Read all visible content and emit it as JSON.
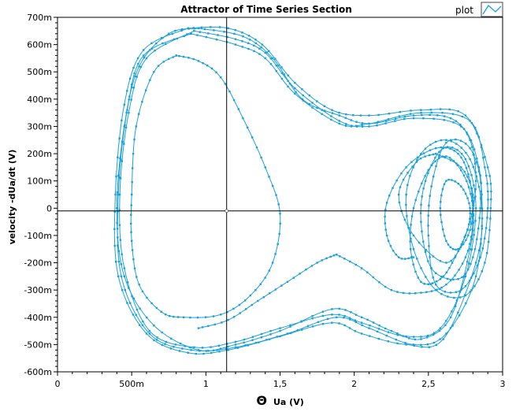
{
  "chart_data": {
    "type": "line",
    "title": "Attractor of Time Series Section",
    "xlabel_symbol": "Θ",
    "xlabel": "Ua (V)",
    "ylabel": "velocity -dUa/dt  (V)",
    "xlim": [
      0,
      3.0
    ],
    "ylim": [
      -0.6,
      0.7
    ],
    "x_ticks": [
      0,
      0.5,
      1,
      1.5,
      2,
      2.5,
      3
    ],
    "x_tick_labels": [
      "0",
      "500m",
      "1",
      "1,5",
      "2",
      "2,5",
      "3"
    ],
    "y_ticks": [
      0.7,
      0.6,
      0.5,
      0.4,
      0.3,
      0.2,
      0.1,
      0,
      -0.1,
      -0.2,
      -0.3,
      -0.4,
      -0.5,
      -0.6
    ],
    "y_tick_labels": [
      "700m",
      "600m",
      "500m",
      "400m",
      "300m",
      "200m",
      "100m",
      "0",
      "-100m",
      "-200m",
      "-300m",
      "-400m",
      "-500m",
      "-600m"
    ],
    "cursor": {
      "x": 1.14,
      "y": -0.01
    },
    "legend": {
      "position": "top-right",
      "entries": [
        "plot"
      ]
    },
    "series_color": "#1aa0d8",
    "series": [
      {
        "name": "plot",
        "loop_keypoints": [
          [
            [
              0.95,
              0.66
            ],
            [
              1.25,
              0.63
            ],
            [
              1.45,
              0.55
            ],
            [
              1.65,
              0.4
            ],
            [
              1.9,
              0.34
            ],
            [
              2.1,
              0.31
            ],
            [
              2.4,
              0.34
            ],
            [
              2.65,
              0.33
            ],
            [
              2.78,
              0.25
            ],
            [
              2.82,
              0.1
            ],
            [
              2.78,
              -0.05
            ],
            [
              2.68,
              -0.18
            ],
            [
              2.58,
              -0.26
            ],
            [
              2.45,
              -0.27
            ],
            [
              2.38,
              -0.15
            ],
            [
              2.4,
              0.0
            ],
            [
              2.5,
              0.14
            ],
            [
              2.62,
              0.19
            ],
            [
              2.74,
              0.12
            ],
            [
              2.8,
              0.0
            ],
            [
              2.78,
              -0.15
            ],
            [
              2.65,
              -0.4
            ],
            [
              2.45,
              -0.48
            ],
            [
              2.25,
              -0.45
            ],
            [
              2.05,
              -0.4
            ],
            [
              1.85,
              -0.37
            ],
            [
              1.5,
              -0.45
            ],
            [
              1.2,
              -0.5
            ],
            [
              0.95,
              -0.52
            ],
            [
              0.65,
              -0.43
            ],
            [
              0.45,
              -0.25
            ],
            [
              0.4,
              0.0
            ],
            [
              0.45,
              0.3
            ],
            [
              0.55,
              0.52
            ],
            [
              0.75,
              0.64
            ],
            [
              0.95,
              0.66
            ]
          ],
          [
            [
              0.92,
              0.65
            ],
            [
              1.2,
              0.62
            ],
            [
              1.4,
              0.57
            ],
            [
              1.6,
              0.44
            ],
            [
              1.9,
              0.32
            ],
            [
              2.1,
              0.3
            ],
            [
              2.4,
              0.33
            ],
            [
              2.72,
              0.3
            ],
            [
              2.84,
              0.15
            ],
            [
              2.85,
              0.0
            ],
            [
              2.8,
              -0.18
            ],
            [
              2.7,
              -0.26
            ],
            [
              2.52,
              -0.22
            ],
            [
              2.45,
              -0.05
            ],
            [
              2.48,
              0.1
            ],
            [
              2.6,
              0.22
            ],
            [
              2.75,
              0.18
            ],
            [
              2.82,
              0.0
            ],
            [
              2.75,
              -0.25
            ],
            [
              2.58,
              -0.44
            ],
            [
              2.35,
              -0.47
            ],
            [
              2.05,
              -0.42
            ],
            [
              1.85,
              -0.39
            ],
            [
              1.5,
              -0.44
            ],
            [
              1.2,
              -0.49
            ],
            [
              0.92,
              -0.51
            ],
            [
              0.62,
              -0.45
            ],
            [
              0.45,
              -0.22
            ],
            [
              0.42,
              0.05
            ],
            [
              0.48,
              0.35
            ],
            [
              0.6,
              0.55
            ],
            [
              0.92,
              0.65
            ]
          ],
          [
            [
              0.9,
              0.64
            ],
            [
              1.2,
              0.6
            ],
            [
              1.4,
              0.55
            ],
            [
              1.6,
              0.42
            ],
            [
              1.9,
              0.31
            ],
            [
              2.1,
              0.31
            ],
            [
              2.45,
              0.35
            ],
            [
              2.78,
              0.32
            ],
            [
              2.88,
              0.15
            ],
            [
              2.9,
              0.0
            ],
            [
              2.85,
              -0.18
            ],
            [
              2.72,
              -0.3
            ],
            [
              2.55,
              -0.28
            ],
            [
              2.5,
              -0.1
            ],
            [
              2.52,
              0.08
            ],
            [
              2.62,
              0.24
            ],
            [
              2.78,
              0.22
            ],
            [
              2.86,
              0.05
            ],
            [
              2.82,
              -0.25
            ],
            [
              2.62,
              -0.46
            ],
            [
              2.4,
              -0.5
            ],
            [
              2.1,
              -0.44
            ],
            [
              1.88,
              -0.4
            ],
            [
              1.55,
              -0.46
            ],
            [
              1.2,
              -0.51
            ],
            [
              0.9,
              -0.52
            ],
            [
              0.62,
              -0.46
            ],
            [
              0.43,
              -0.25
            ],
            [
              0.41,
              0.05
            ],
            [
              0.47,
              0.36
            ],
            [
              0.58,
              0.56
            ],
            [
              0.9,
              0.64
            ]
          ],
          [
            [
              0.88,
              0.66
            ],
            [
              1.15,
              0.66
            ],
            [
              1.38,
              0.6
            ],
            [
              1.6,
              0.46
            ],
            [
              1.85,
              0.36
            ],
            [
              2.1,
              0.34
            ],
            [
              2.45,
              0.36
            ],
            [
              2.75,
              0.34
            ],
            [
              2.9,
              0.15
            ],
            [
              2.92,
              0.0
            ],
            [
              2.88,
              -0.2
            ],
            [
              2.75,
              -0.32
            ],
            [
              2.55,
              -0.3
            ],
            [
              2.4,
              -0.15
            ],
            [
              2.35,
              0.05
            ],
            [
              2.45,
              0.2
            ],
            [
              2.62,
              0.25
            ],
            [
              2.78,
              0.18
            ],
            [
              2.86,
              0.0
            ],
            [
              2.82,
              -0.2
            ],
            [
              2.6,
              -0.48
            ],
            [
              2.35,
              -0.5
            ],
            [
              2.05,
              -0.46
            ],
            [
              1.85,
              -0.42
            ],
            [
              1.5,
              -0.47
            ],
            [
              1.15,
              -0.52
            ],
            [
              0.88,
              -0.53
            ],
            [
              0.6,
              -0.46
            ],
            [
              0.41,
              -0.25
            ],
            [
              0.39,
              0.05
            ],
            [
              0.45,
              0.38
            ],
            [
              0.58,
              0.58
            ],
            [
              0.88,
              0.66
            ]
          ],
          [
            [
              0.8,
              0.56
            ],
            [
              0.95,
              0.54
            ],
            [
              1.1,
              0.48
            ],
            [
              1.25,
              0.33
            ],
            [
              1.4,
              0.15
            ],
            [
              1.5,
              -0.02
            ],
            [
              1.45,
              -0.2
            ],
            [
              1.3,
              -0.32
            ],
            [
              1.1,
              -0.39
            ],
            [
              0.85,
              -0.4
            ],
            [
              0.7,
              -0.38
            ],
            [
              0.55,
              -0.28
            ],
            [
              0.5,
              -0.12
            ],
            [
              0.5,
              0.05
            ],
            [
              0.53,
              0.3
            ],
            [
              0.65,
              0.5
            ],
            [
              0.8,
              0.56
            ]
          ],
          [
            [
              2.55,
              0.2
            ],
            [
              2.72,
              0.15
            ],
            [
              2.8,
              0.05
            ],
            [
              2.78,
              -0.08
            ],
            [
              2.7,
              -0.15
            ],
            [
              2.62,
              -0.12
            ],
            [
              2.58,
              0.0
            ],
            [
              2.62,
              0.1
            ],
            [
              2.72,
              0.08
            ],
            [
              2.78,
              0.0
            ],
            [
              2.75,
              -0.1
            ],
            [
              2.62,
              -0.2
            ],
            [
              2.4,
              -0.1
            ],
            [
              2.3,
              0.05
            ],
            [
              2.42,
              0.17
            ],
            [
              2.55,
              0.2
            ]
          ],
          [
            [
              1.88,
              -0.17
            ],
            [
              2.05,
              -0.22
            ],
            [
              2.25,
              -0.3
            ],
            [
              2.45,
              -0.31
            ],
            [
              2.62,
              -0.28
            ],
            [
              2.75,
              -0.18
            ],
            [
              2.8,
              -0.05
            ],
            [
              2.78,
              0.1
            ],
            [
              2.7,
              0.2
            ],
            [
              2.55,
              0.22
            ],
            [
              2.35,
              0.15
            ],
            [
              2.22,
              0.02
            ],
            [
              2.22,
              -0.1
            ],
            [
              2.3,
              -0.18
            ],
            [
              2.4,
              -0.18
            ]
          ],
          [
            [
              1.88,
              -0.17
            ],
            [
              1.75,
              -0.2
            ],
            [
              1.55,
              -0.27
            ],
            [
              1.35,
              -0.34
            ],
            [
              1.15,
              -0.41
            ],
            [
              0.95,
              -0.44
            ]
          ]
        ]
      }
    ]
  }
}
